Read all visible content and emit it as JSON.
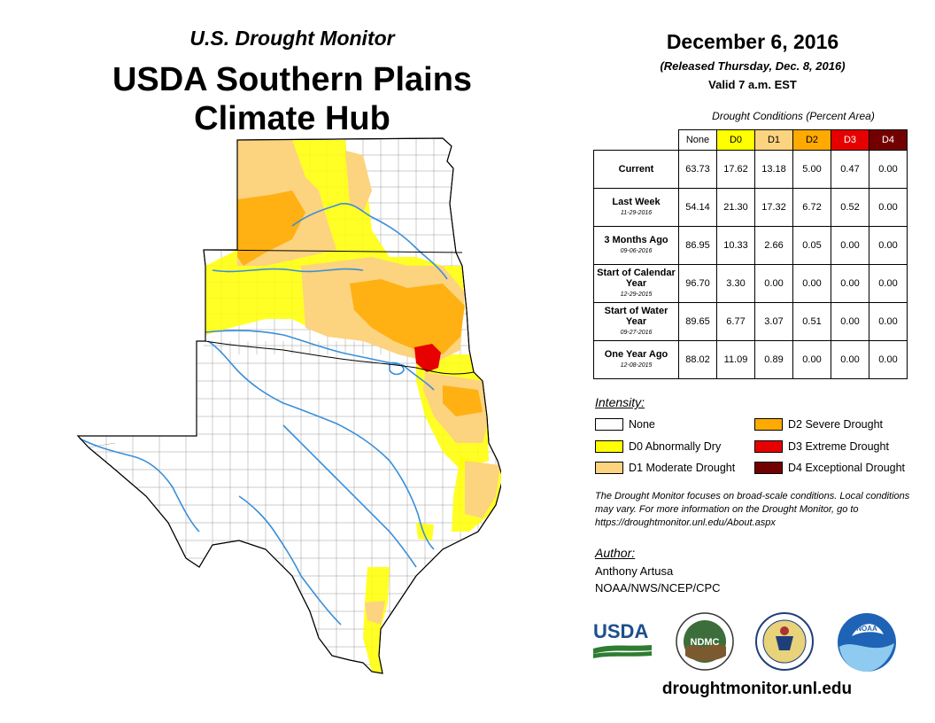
{
  "header": {
    "subtitle": "U.S. Drought Monitor",
    "title": "USDA Southern Plains Climate Hub"
  },
  "date_block": {
    "date": "December 6, 2016",
    "released": "(Released Thursday, Dec. 8, 2016)",
    "valid": "Valid 7 a.m. EST"
  },
  "conditions_table": {
    "caption": "Drought Conditions (Percent Area)",
    "columns": [
      {
        "label": "None",
        "color": "#ffffff",
        "text_color": "#000000"
      },
      {
        "label": "D0",
        "color": "#ffff00",
        "text_color": "#000000"
      },
      {
        "label": "D1",
        "color": "#fcd37f",
        "text_color": "#000000"
      },
      {
        "label": "D2",
        "color": "#ffaa00",
        "text_color": "#000000"
      },
      {
        "label": "D3",
        "color": "#e60000",
        "text_color": "#ffffff"
      },
      {
        "label": "D4",
        "color": "#730000",
        "text_color": "#ffffff"
      }
    ],
    "rows": [
      {
        "label": "Current",
        "sublabel": "",
        "values": [
          "63.73",
          "17.62",
          "13.18",
          "5.00",
          "0.47",
          "0.00"
        ]
      },
      {
        "label": "Last Week",
        "sublabel": "11-29-2016",
        "values": [
          "54.14",
          "21.30",
          "17.32",
          "6.72",
          "0.52",
          "0.00"
        ]
      },
      {
        "label": "3 Months Ago",
        "sublabel": "09-06-2016",
        "values": [
          "86.95",
          "10.33",
          "2.66",
          "0.05",
          "0.00",
          "0.00"
        ]
      },
      {
        "label": "Start of Calendar Year",
        "sublabel": "12-29-2015",
        "values": [
          "96.70",
          "3.30",
          "0.00",
          "0.00",
          "0.00",
          "0.00"
        ]
      },
      {
        "label": "Start of Water Year",
        "sublabel": "09-27-2016",
        "values": [
          "89.65",
          "6.77",
          "3.07",
          "0.51",
          "0.00",
          "0.00"
        ]
      },
      {
        "label": "One Year Ago",
        "sublabel": "12-08-2015",
        "values": [
          "88.02",
          "11.09",
          "0.89",
          "0.00",
          "0.00",
          "0.00"
        ]
      }
    ]
  },
  "legend": {
    "title": "Intensity:",
    "items": [
      {
        "label": "None",
        "color": "#ffffff"
      },
      {
        "label": "D0 Abnormally Dry",
        "color": "#ffff00"
      },
      {
        "label": "D1 Moderate Drought",
        "color": "#fcd37f"
      },
      {
        "label": "D2 Severe Drought",
        "color": "#ffaa00"
      },
      {
        "label": "D3 Extreme Drought",
        "color": "#e60000"
      },
      {
        "label": "D4 Exceptional Drought",
        "color": "#730000"
      }
    ]
  },
  "note": "The Drought Monitor focuses on broad-scale conditions. Local conditions may vary. For more information on the Drought Monitor, go to https://droughtmonitor.unl.edu/About.aspx",
  "author": {
    "title": "Author:",
    "name": "Anthony Artusa",
    "org": "NOAA/NWS/NCEP/CPC"
  },
  "logos": [
    {
      "name": "usda-logo",
      "text": "USDA"
    },
    {
      "name": "ndmc-logo",
      "text": "NDMC"
    },
    {
      "name": "commerce-seal",
      "text": ""
    },
    {
      "name": "noaa-logo",
      "text": "NOAA"
    }
  ],
  "website": "droughtmonitor.unl.edu",
  "colors": {
    "river": "#3a8fd9",
    "border": "#000000"
  }
}
